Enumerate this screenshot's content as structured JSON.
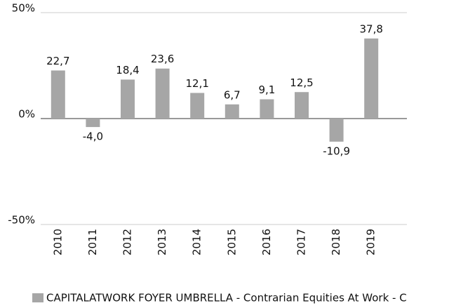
{
  "chart_data": {
    "type": "bar",
    "categories": [
      "2010",
      "2011",
      "2012",
      "2013",
      "2014",
      "2015",
      "2016",
      "2017",
      "2018",
      "2019"
    ],
    "series": [
      {
        "name": "CAPITALATWORK FOYER UMBRELLA - Contrarian Equities At Work - C",
        "color": "#a6a6a6",
        "values": [
          22.7,
          -4.0,
          18.4,
          23.6,
          12.1,
          6.7,
          9.1,
          12.5,
          -10.9,
          37.8
        ],
        "value_labels": [
          "22,7",
          "-4,0",
          "18,4",
          "23,6",
          "12,1",
          "6,7",
          "9,1",
          "12,5",
          "-10,9",
          "37,8"
        ]
      }
    ],
    "ylim": [
      -50,
      50
    ],
    "yticks": [
      {
        "value": -50,
        "label": "-50%"
      },
      {
        "value": 0,
        "label": "0%"
      },
      {
        "value": 50,
        "label": "50%"
      }
    ],
    "grid": true
  }
}
